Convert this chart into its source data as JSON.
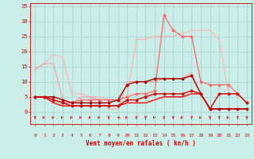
{
  "xlabel": "Vent moyen/en rafales ( kn/h )",
  "background_color": "#cceee8",
  "grid_color": "#aad4d0",
  "x_ticks": [
    0,
    1,
    2,
    3,
    4,
    5,
    6,
    7,
    8,
    9,
    10,
    11,
    12,
    13,
    14,
    15,
    16,
    17,
    18,
    19,
    20,
    21,
    22,
    23
  ],
  "ylim": [
    -4,
    36
  ],
  "xlim": [
    -0.5,
    23.5
  ],
  "yticks": [
    0,
    5,
    10,
    15,
    20,
    25,
    30,
    35
  ],
  "lines": [
    {
      "x": [
        0,
        1,
        2,
        3,
        4,
        5,
        6,
        7,
        8,
        9,
        10,
        11,
        12,
        13,
        14,
        15,
        16,
        17,
        18,
        19,
        20,
        21,
        22,
        23
      ],
      "y": [
        14,
        16,
        19,
        18,
        6,
        6,
        5,
        5,
        4,
        4,
        5,
        24,
        24,
        25,
        25,
        25,
        26,
        27,
        27,
        27,
        24,
        6,
        6,
        3
      ],
      "color": "#ffb0b0",
      "lw": 0.8,
      "marker": null,
      "ms": 0
    },
    {
      "x": [
        0,
        1,
        2,
        3,
        4,
        5,
        6,
        7,
        8,
        9,
        10,
        11,
        12,
        13,
        14,
        15,
        16,
        17,
        18,
        19,
        20,
        21,
        22,
        23
      ],
      "y": [
        14,
        16,
        16,
        4,
        3,
        5,
        5,
        4,
        1,
        1,
        10,
        10,
        10,
        10,
        11,
        11,
        11,
        13,
        6,
        1,
        1,
        1,
        1,
        1
      ],
      "color": "#ff9999",
      "lw": 0.8,
      "marker": null,
      "ms": 0
    },
    {
      "x": [
        0,
        1,
        2,
        3,
        4,
        5,
        6,
        7,
        8,
        9,
        10,
        11,
        12,
        13,
        14,
        15,
        16,
        17,
        18,
        19,
        20,
        21,
        22,
        23
      ],
      "y": [
        5,
        5,
        4,
        3,
        3,
        4,
        4,
        4,
        4,
        4,
        5,
        6,
        6,
        7,
        32,
        27,
        25,
        25,
        10,
        9,
        9,
        9,
        6,
        3
      ],
      "color": "#ff6666",
      "lw": 0.9,
      "marker": "D",
      "ms": 1.5
    },
    {
      "x": [
        0,
        1,
        2,
        3,
        4,
        5,
        6,
        7,
        8,
        9,
        10,
        11,
        12,
        13,
        14,
        15,
        16,
        17,
        18,
        19,
        20,
        21,
        22,
        23
      ],
      "y": [
        5,
        5,
        5,
        4,
        3,
        3,
        3,
        3,
        3,
        4,
        9,
        10,
        10,
        11,
        11,
        11,
        11,
        12,
        6,
        1,
        1,
        1,
        1,
        1
      ],
      "color": "#aa0000",
      "lw": 1.0,
      "marker": "D",
      "ms": 1.5
    },
    {
      "x": [
        0,
        1,
        2,
        3,
        4,
        5,
        6,
        7,
        8,
        9,
        10,
        11,
        12,
        13,
        14,
        15,
        16,
        17,
        18,
        19,
        20,
        21,
        22,
        23
      ],
      "y": [
        5,
        5,
        4,
        3,
        2,
        2,
        2,
        2,
        2,
        2,
        4,
        4,
        5,
        6,
        6,
        6,
        6,
        7,
        6,
        1,
        6,
        6,
        6,
        3
      ],
      "color": "#cc0000",
      "lw": 1.0,
      "marker": "D",
      "ms": 1.5
    },
    {
      "x": [
        0,
        1,
        2,
        3,
        4,
        5,
        6,
        7,
        8,
        9,
        10,
        11,
        12,
        13,
        14,
        15,
        16,
        17,
        18,
        19,
        20,
        21,
        22,
        23
      ],
      "y": [
        5,
        5,
        3,
        2,
        2,
        2,
        2,
        2,
        2,
        2,
        3,
        3,
        3,
        4,
        5,
        5,
        5,
        6,
        6,
        1,
        1,
        1,
        1,
        1
      ],
      "color": "#ff0000",
      "lw": 1.0,
      "marker": null,
      "ms": 0
    }
  ],
  "tick_color": "#cc0000",
  "arrow_color": "#cc0000"
}
